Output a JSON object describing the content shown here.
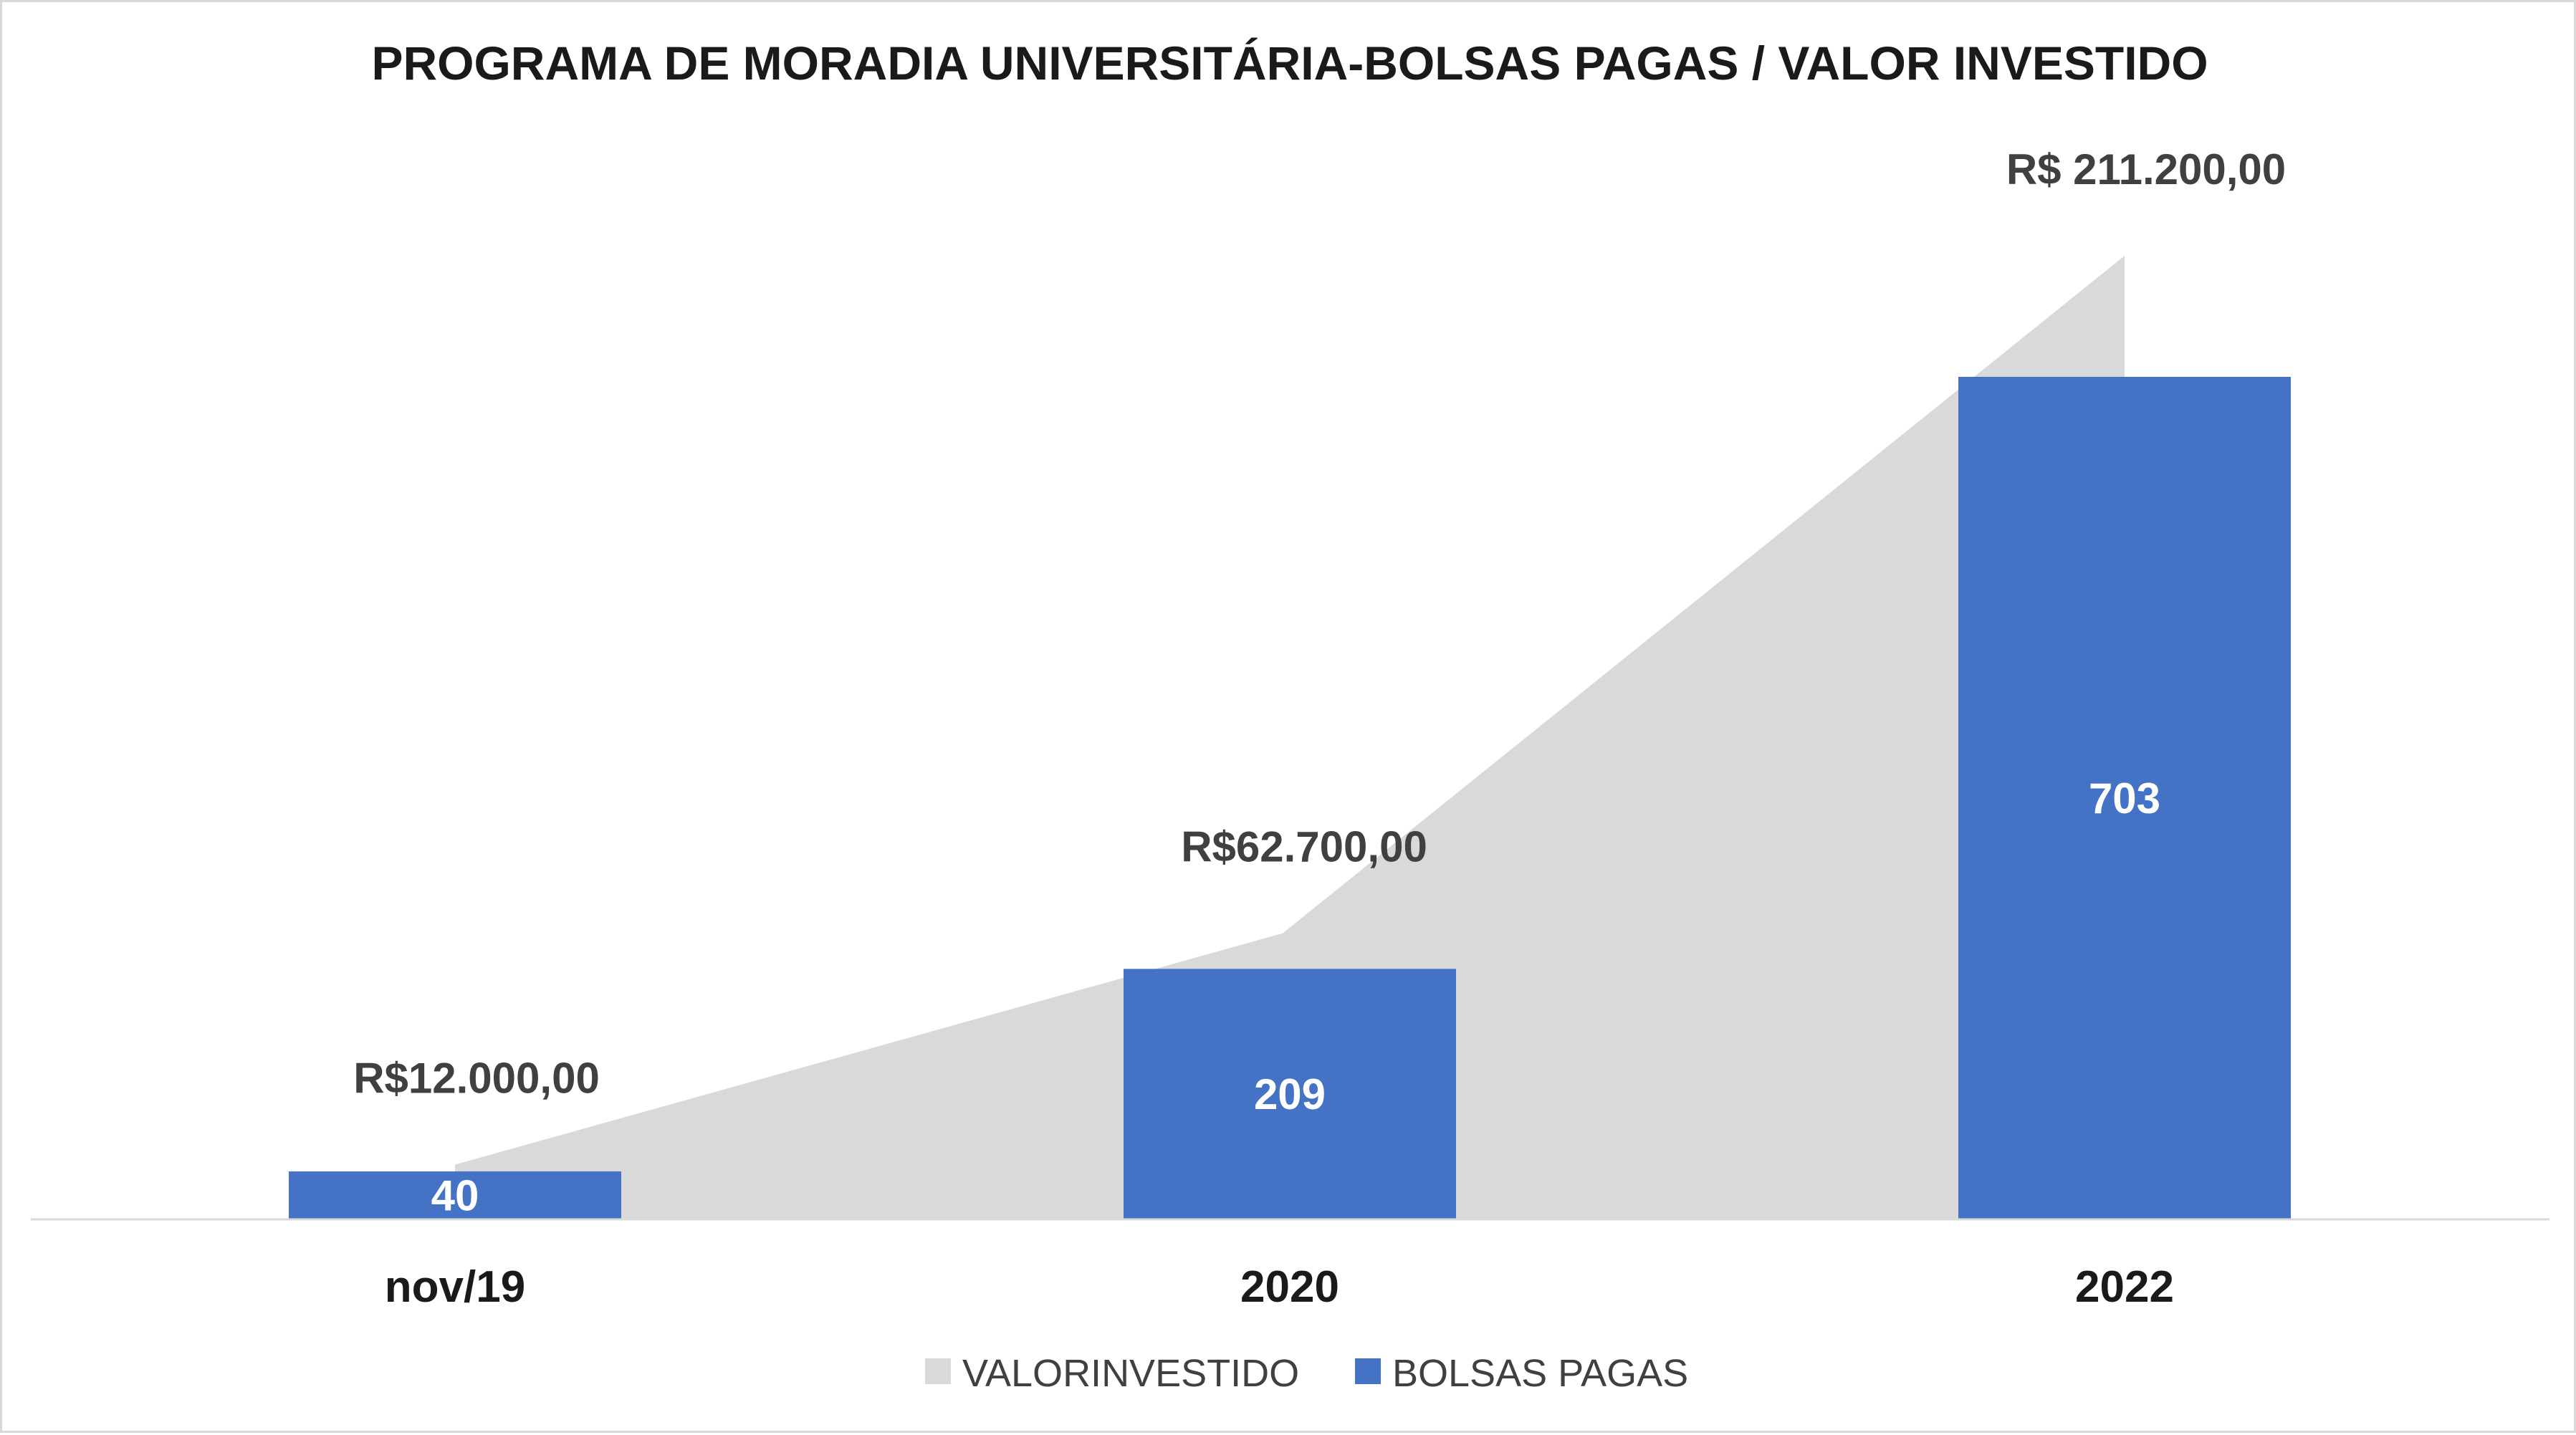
{
  "chart_data": {
    "type": "bar",
    "title": "PROGRAMA DE MORADIA UNIVERSITÁRIA-BOLSAS PAGAS / VALOR INVESTIDO",
    "categories": [
      "nov/19",
      "2020",
      "2022"
    ],
    "series": [
      {
        "name": "VALORINVESTIDO",
        "type": "area",
        "color": "#d9d9d9",
        "values": [
          12000,
          62700,
          211200
        ],
        "labels": [
          "R$12.000,00",
          "R$62.700,00",
          "R$ 211.200,00"
        ]
      },
      {
        "name": "BOLSAS PAGAS",
        "type": "bar",
        "color": "#4472c4",
        "values": [
          40,
          209,
          703
        ],
        "labels": [
          "40",
          "209",
          "703"
        ]
      }
    ],
    "legend": "bottom",
    "grid": false
  }
}
